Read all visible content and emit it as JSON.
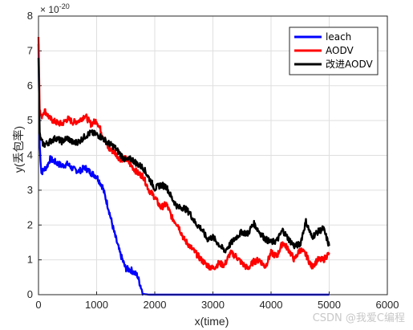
{
  "chart_data": {
    "type": "line",
    "title": "",
    "xlabel": "x(time)",
    "ylabel": "y(丢包率)",
    "y_exponent_label": "× 10",
    "y_exponent_power": "-20",
    "xlim": [
      0,
      6000
    ],
    "ylim": [
      0,
      8
    ],
    "xticks": [
      "0",
      "1000",
      "2000",
      "3000",
      "4000",
      "5000",
      "6000"
    ],
    "yticks": [
      "0",
      "1",
      "2",
      "3",
      "4",
      "5",
      "6",
      "7",
      "8"
    ],
    "grid": true,
    "legend_position": "top-right",
    "series": [
      {
        "name": "leach",
        "color": "#0000ff",
        "x": [
          0,
          20,
          50,
          100,
          150,
          200,
          300,
          400,
          500,
          600,
          700,
          800,
          900,
          1000,
          1100,
          1200,
          1300,
          1400,
          1500,
          1600,
          1700,
          1800,
          1900,
          2000,
          3000,
          4000,
          5000
        ],
        "y": [
          7.2,
          4.3,
          3.5,
          3.6,
          3.7,
          3.9,
          3.8,
          3.7,
          3.75,
          3.6,
          3.55,
          3.65,
          3.5,
          3.4,
          3.1,
          2.5,
          1.8,
          1.2,
          0.75,
          0.7,
          0.55,
          0.02,
          0,
          0,
          0,
          0,
          0
        ]
      },
      {
        "name": "AODV",
        "color": "#ff0000",
        "x": [
          0,
          20,
          50,
          100,
          200,
          300,
          400,
          500,
          600,
          700,
          800,
          900,
          1000,
          1100,
          1200,
          1300,
          1400,
          1500,
          1600,
          1700,
          1800,
          1900,
          2000,
          2100,
          2200,
          2300,
          2400,
          2500,
          2600,
          2700,
          2800,
          2900,
          3000,
          3100,
          3200,
          3300,
          3400,
          3500,
          3600,
          3700,
          3800,
          3900,
          4000,
          4100,
          4200,
          4300,
          4400,
          4500,
          4600,
          4700,
          4800,
          4900,
          5000
        ],
        "y": [
          7.4,
          5.3,
          5.1,
          5.3,
          5.05,
          4.95,
          4.9,
          5.05,
          4.95,
          5.0,
          5.15,
          4.9,
          5.0,
          4.6,
          4.2,
          4.1,
          3.9,
          3.9,
          3.7,
          3.5,
          3.4,
          3.0,
          2.8,
          2.5,
          2.6,
          2.2,
          2.0,
          1.6,
          1.4,
          1.2,
          1.0,
          0.85,
          0.75,
          0.9,
          0.85,
          1.2,
          1.1,
          0.9,
          0.75,
          0.95,
          1.0,
          0.8,
          1.2,
          1.1,
          1.5,
          1.3,
          1.0,
          1.3,
          1.15,
          0.8,
          1.0,
          1.0,
          1.2
        ]
      },
      {
        "name": "改进AODV",
        "color": "#000000",
        "x": [
          0,
          20,
          50,
          100,
          200,
          300,
          400,
          500,
          600,
          700,
          800,
          900,
          1000,
          1100,
          1200,
          1300,
          1400,
          1500,
          1600,
          1700,
          1800,
          1900,
          2000,
          2100,
          2200,
          2300,
          2400,
          2500,
          2600,
          2700,
          2800,
          2900,
          3000,
          3100,
          3200,
          3300,
          3400,
          3500,
          3600,
          3700,
          3800,
          3900,
          4000,
          4100,
          4200,
          4300,
          4400,
          4500,
          4600,
          4700,
          4800,
          4900,
          5000
        ],
        "y": [
          6.8,
          4.6,
          4.4,
          4.3,
          4.4,
          4.5,
          4.4,
          4.5,
          4.35,
          4.4,
          4.55,
          4.65,
          4.6,
          4.5,
          4.35,
          4.25,
          4.05,
          3.85,
          3.9,
          3.75,
          3.65,
          3.35,
          3.05,
          3.15,
          3.1,
          2.75,
          2.5,
          2.5,
          2.35,
          2.05,
          1.9,
          1.6,
          1.65,
          1.45,
          1.25,
          1.45,
          1.65,
          1.8,
          1.75,
          2.05,
          1.8,
          1.6,
          1.5,
          1.55,
          1.85,
          1.6,
          1.4,
          1.45,
          2.1,
          1.65,
          1.8,
          1.9,
          1.4
        ]
      }
    ]
  },
  "watermark": "CSDN @我爱C编程"
}
